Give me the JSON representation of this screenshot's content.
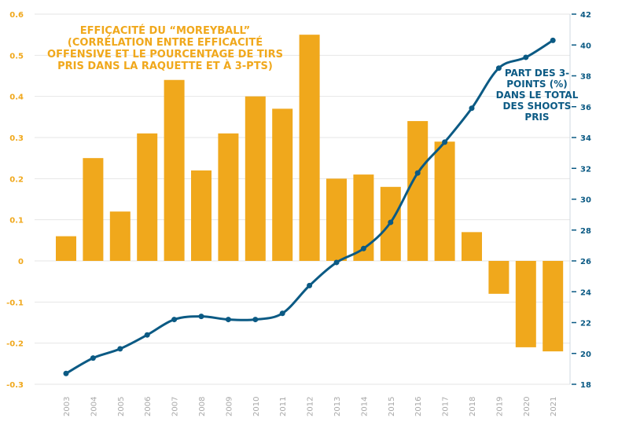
{
  "chart_data": {
    "type": "bar+line",
    "categories": [
      "2003",
      "2004",
      "2005",
      "2006",
      "2007",
      "2008",
      "2009",
      "2010",
      "2011",
      "2012",
      "2013",
      "2014",
      "2015",
      "2016",
      "2017",
      "2018",
      "2019",
      "2020",
      "2021"
    ],
    "series": [
      {
        "name": "EFFIÇACITÉ DU “MOREYBALL” (CORRÉLATION ENTRE EFFICACITÉ OFFENSIVE ET LE POURCENTAGE DE TIRS PRIS DANS LA RAQUETTE ET À 3-PTS)",
        "type": "bar",
        "axis": "left",
        "color": "#F0A81C",
        "values": [
          0.06,
          0.25,
          0.12,
          0.31,
          0.44,
          0.22,
          0.31,
          0.4,
          0.37,
          0.55,
          0.2,
          0.21,
          0.18,
          0.34,
          0.29,
          0.07,
          -0.08,
          -0.21,
          -0.22
        ]
      },
      {
        "name": "PART DES 3-POINTS (%) DANS LE TOTAL DES SHOOTS PRIS",
        "type": "line",
        "axis": "right",
        "color": "#0B5A84",
        "values": [
          18.7,
          19.7,
          20.3,
          21.2,
          22.2,
          22.4,
          22.2,
          22.2,
          22.6,
          24.4,
          25.9,
          26.8,
          28.5,
          31.7,
          33.7,
          35.9,
          38.5,
          39.2,
          40.3
        ]
      }
    ],
    "left_axis": {
      "ylim": [
        -0.3,
        0.6
      ],
      "ticks": [
        "0.6",
        "0.5",
        "0.4",
        "0.3",
        "0.2",
        "0.1",
        "0",
        "-0.1",
        "-0.2",
        "-0.3"
      ],
      "color": "#F0A81C"
    },
    "right_axis": {
      "ylim": [
        18,
        42
      ],
      "ticks": [
        "42",
        "40",
        "38",
        "36",
        "34",
        "32",
        "30",
        "28",
        "26",
        "24",
        "22",
        "20",
        "18"
      ],
      "color": "#0B5A84"
    },
    "title_left": {
      "line1": "EFFIÇACITÉ DU “MOREYBALL”",
      "line2": "(CORRÉLATION ENTRE EFFICACITÉ OFFENSIVE ET LE POURCENTAGE DE TIRS PRIS DANS LA RAQUETTE ET À 3-PTS)"
    },
    "title_right": "PART DES 3-POINTS (%) DANS LE TOTAL DES SHOOTS PRIS",
    "grid": true
  }
}
